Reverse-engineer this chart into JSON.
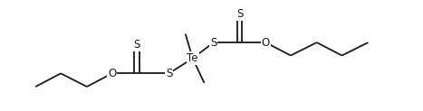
{
  "bg_color": "#ffffff",
  "line_color": "#1a1a1a",
  "text_color": "#1a1a1a",
  "font_size": 8.5,
  "line_width": 1.3,
  "figsize": [
    4.67,
    1.23
  ],
  "dpi": 100,
  "xlim": [
    -5.5,
    6.8
  ],
  "ylim": [
    -1.8,
    2.0
  ]
}
